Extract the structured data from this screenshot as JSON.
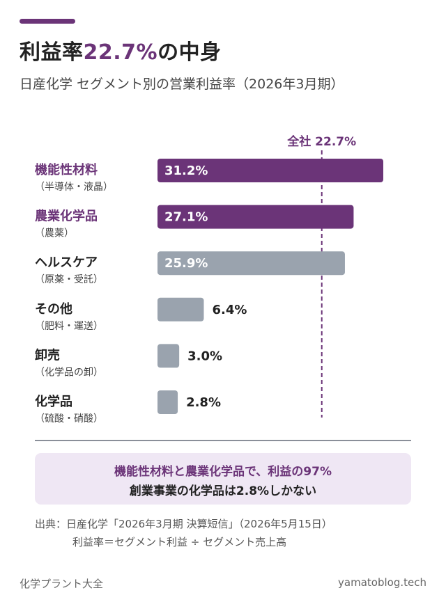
{
  "header": {
    "title_pre": "利益率",
    "title_highlight": "22.7%",
    "title_post": "の中身",
    "subtitle": "日産化学 セグメント別の営業利益率（2026年3月期）"
  },
  "chart_data": {
    "type": "bar",
    "orientation": "horizontal",
    "categories": [
      "機能性材料",
      "農業化学品",
      "ヘルスケア",
      "その他",
      "卸売",
      "化学品"
    ],
    "category_notes": [
      "（半導体・液晶）",
      "（農薬）",
      "（原薬・受託）",
      "（肥料・運送）",
      "（化学品の卸）",
      "（硫酸・硝酸）"
    ],
    "values": [
      31.2,
      27.1,
      25.9,
      6.4,
      3.0,
      2.8
    ],
    "value_labels": [
      "31.2%",
      "27.1%",
      "25.9%",
      "6.4%",
      "3.0%",
      "2.8%"
    ],
    "unit": "%",
    "xlim": [
      0,
      31.2
    ],
    "bar_colors": [
      "#6b3478",
      "#6b3478",
      "#9aa3ae",
      "#9aa3ae",
      "#9aa3ae",
      "#9aa3ae"
    ],
    "highlight_label_color": "#6b3478",
    "reference_line": {
      "value": 22.7,
      "label": "全社 22.7%"
    },
    "grid": false
  },
  "callout": {
    "line1": "機能性材料と農業化学品で、利益の97%",
    "line2": "創業事業の化学品は2.8%しかない"
  },
  "source": {
    "line1": "出典：日産化学「2026年3月期 決算短信」（2026年5月15日）",
    "line2": "利益率＝セグメント利益 ÷ セグメント売上高"
  },
  "footer": {
    "left": "化学プラント大全",
    "right": "yamatoblog.tech"
  },
  "colors": {
    "accent": "#6b3478",
    "muted_bar": "#9aa3ae",
    "callout_bg": "#efe7f4"
  }
}
